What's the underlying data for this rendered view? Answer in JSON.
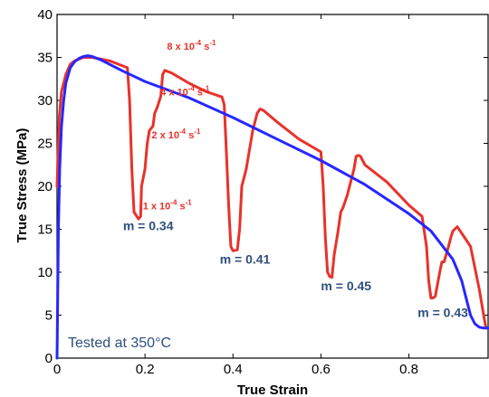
{
  "chart_data": {
    "type": "line",
    "title": "",
    "xlabel": "True Strain",
    "ylabel": "True Stress (MPa)",
    "xlim": [
      0,
      0.98
    ],
    "ylim": [
      0,
      40
    ],
    "grid": false,
    "colors": {
      "red": "#e8322b",
      "blue": "#2626ff",
      "annotation_m": "#2f4f7f"
    },
    "x_ticks": [
      {
        "value": 0,
        "label": "0"
      },
      {
        "value": 0.2,
        "label": "0.2"
      },
      {
        "value": 0.4,
        "label": "0.4"
      },
      {
        "value": 0.6,
        "label": "0.6"
      },
      {
        "value": 0.8,
        "label": "0.8"
      }
    ],
    "y_ticks": [
      {
        "value": 0,
        "label": "0"
      },
      {
        "value": 5,
        "label": "5"
      },
      {
        "value": 10,
        "label": "10"
      },
      {
        "value": 15,
        "label": "15"
      },
      {
        "value": 20,
        "label": "20"
      },
      {
        "value": 25,
        "label": "25"
      },
      {
        "value": 30,
        "label": "30"
      },
      {
        "value": 35,
        "label": "35"
      },
      {
        "value": 40,
        "label": "40"
      }
    ],
    "series": [
      {
        "color": "red",
        "x": [
          0,
          0.005,
          0.01,
          0.02,
          0.03,
          0.04,
          0.06,
          0.08,
          0.1,
          0.12,
          0.14,
          0.16,
          0.165,
          0.17,
          0.175,
          0.185,
          0.19,
          0.192,
          0.2,
          0.205,
          0.21,
          0.218,
          0.222,
          0.228,
          0.236,
          0.24,
          0.245,
          0.26,
          0.3,
          0.34,
          0.375,
          0.38,
          0.385,
          0.39,
          0.395,
          0.4,
          0.41,
          0.415,
          0.42,
          0.43,
          0.44,
          0.445,
          0.455,
          0.46,
          0.462,
          0.47,
          0.5,
          0.55,
          0.6,
          0.605,
          0.61,
          0.615,
          0.62,
          0.625,
          0.63,
          0.638,
          0.645,
          0.65,
          0.66,
          0.665,
          0.675,
          0.68,
          0.685,
          0.69,
          0.7,
          0.75,
          0.8,
          0.83,
          0.84,
          0.845,
          0.85,
          0.855,
          0.86,
          0.87,
          0.875,
          0.88,
          0.89,
          0.895,
          0.9,
          0.91,
          0.94,
          0.96,
          0.97,
          0.975,
          0.98
        ],
        "y": [
          20,
          28,
          31,
          33,
          34.2,
          34.6,
          35,
          35,
          34.8,
          34.6,
          34.2,
          33.8,
          30,
          22,
          17,
          16.2,
          16.5,
          20,
          22,
          25,
          26.5,
          27,
          28.5,
          29.2,
          30.5,
          33,
          33.5,
          33.2,
          32,
          31,
          30.4,
          29.5,
          24,
          18,
          13,
          12.5,
          12.6,
          15,
          20,
          22,
          25,
          26.5,
          28.5,
          28.9,
          29,
          28.8,
          27.5,
          25.5,
          24,
          20,
          14,
          10,
          9.5,
          9.4,
          12,
          14.5,
          17,
          17.5,
          19,
          20,
          22,
          23.5,
          23.6,
          23.5,
          22.5,
          20.5,
          17.8,
          16.5,
          13,
          9,
          7,
          7,
          7.2,
          10,
          11.2,
          11.2,
          13,
          14,
          14.8,
          15.3,
          13,
          8,
          5,
          3.5,
          3.5
        ]
      },
      {
        "color": "blue",
        "x": [
          0,
          0.003,
          0.006,
          0.01,
          0.015,
          0.02,
          0.03,
          0.04,
          0.05,
          0.06,
          0.07,
          0.08,
          0.1,
          0.15,
          0.2,
          0.3,
          0.4,
          0.5,
          0.6,
          0.7,
          0.8,
          0.85,
          0.9,
          0.92,
          0.93,
          0.94,
          0.95,
          0.96,
          0.97,
          0.98
        ],
        "y": [
          0,
          15,
          22,
          27,
          30,
          32,
          33.8,
          34.5,
          34.9,
          35.1,
          35.2,
          35.1,
          34.7,
          33.4,
          32.2,
          30.3,
          28,
          25.5,
          23,
          20.2,
          16.8,
          14.8,
          11.5,
          9,
          7,
          5,
          4,
          3.6,
          3.5,
          3.5
        ]
      }
    ],
    "annotations": {
      "m_labels": [
        {
          "text": "m = 0.34",
          "x": 0.15,
          "y": 14.9
        },
        {
          "text": "m = 0.41",
          "x": 0.37,
          "y": 11.0
        },
        {
          "text": "m = 0.45",
          "x": 0.6,
          "y": 7.9
        },
        {
          "text": "m = 0.43",
          "x": 0.82,
          "y": 4.8
        }
      ],
      "rate_labels": [
        {
          "base": "8 x 10",
          "exp": "-4",
          "unit": " s",
          "unit_exp": "-1",
          "x": 0.25,
          "y": 35.9
        },
        {
          "base": "4 x 10",
          "exp": "-4",
          "unit": " s",
          "unit_exp": "-1",
          "x": 0.235,
          "y": 30.6
        },
        {
          "base": "2 x 10",
          "exp": "-4",
          "unit": " s",
          "unit_exp": "-1",
          "x": 0.215,
          "y": 25.6
        },
        {
          "base": "1 x 10",
          "exp": "-4",
          "unit": " s",
          "unit_exp": "-1",
          "x": 0.195,
          "y": 17.3
        }
      ],
      "condition": "Tested at 350°C"
    }
  }
}
